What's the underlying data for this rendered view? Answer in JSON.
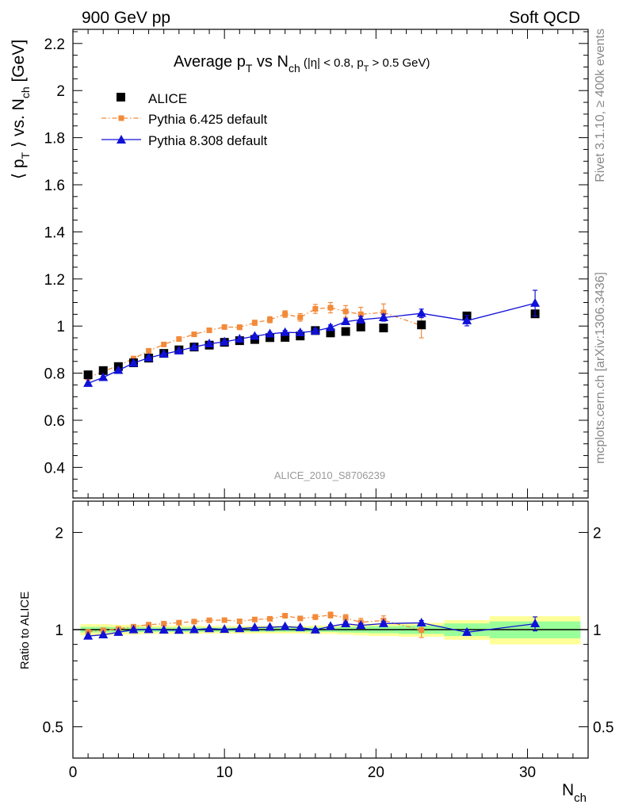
{
  "header": {
    "left": "900 GeV pp",
    "right": "Soft QCD"
  },
  "side_labels": {
    "top": "Rivet 3.1.10, ≥ 400k events",
    "bottom": "mcplots.cern.ch [arXiv:1306.3436]"
  },
  "watermark": "ALICE_2010_S8706239",
  "chart_data": [
    {
      "type": "scatter",
      "title": "Average p_T vs N_ch (|η| < 0.8, p_T > 0.5 GeV)",
      "ylabel": "⟨ p_T ⟩ vs. N_ch [GeV]",
      "xlabel": "N_ch",
      "xlim": [
        0,
        34
      ],
      "ylim": [
        0.27,
        2.26
      ],
      "yticks": [
        "0.4",
        "0.6",
        "0.8",
        "1",
        "1.2",
        "1.4",
        "1.6",
        "1.8",
        "2",
        "2.2"
      ],
      "legend_position": "top-left",
      "series": [
        {
          "name": "ALICE",
          "color": "#000000",
          "marker": "square",
          "points": [
            [
              1,
              0.793
            ],
            [
              2,
              0.811
            ],
            [
              3,
              0.828
            ],
            [
              4,
              0.844
            ],
            [
              5,
              0.864
            ],
            [
              6,
              0.884
            ],
            [
              7,
              0.899
            ],
            [
              8,
              0.911
            ],
            [
              9,
              0.919
            ],
            [
              10,
              0.931
            ],
            [
              11,
              0.938
            ],
            [
              12,
              0.943
            ],
            [
              13,
              0.951
            ],
            [
              14,
              0.952
            ],
            [
              15,
              0.958
            ],
            [
              16,
              0.981
            ],
            [
              17,
              0.971
            ],
            [
              18,
              0.977
            ],
            [
              19,
              0.996
            ],
            [
              20.5,
              0.992
            ],
            [
              23,
              1.005
            ],
            [
              26,
              1.043
            ],
            [
              30.5,
              1.052
            ]
          ]
        },
        {
          "name": "Pythia 6.425 default",
          "color": "#f28a3a",
          "marker": "small-square",
          "line": "dash-dot",
          "points": [
            [
              1,
              0.781,
              0.004
            ],
            [
              2,
              0.807,
              0.004
            ],
            [
              3,
              0.832,
              0.004
            ],
            [
              4,
              0.862,
              0.004
            ],
            [
              5,
              0.895,
              0.005
            ],
            [
              6,
              0.922,
              0.005
            ],
            [
              7,
              0.945,
              0.006
            ],
            [
              8,
              0.965,
              0.007
            ],
            [
              9,
              0.982,
              0.008
            ],
            [
              10,
              0.996,
              0.009
            ],
            [
              11,
              0.995,
              0.01
            ],
            [
              12,
              1.014,
              0.011
            ],
            [
              13,
              1.027,
              0.013
            ],
            [
              14,
              1.051,
              0.014
            ],
            [
              15,
              1.037,
              0.016
            ],
            [
              16,
              1.073,
              0.019
            ],
            [
              17,
              1.078,
              0.022
            ],
            [
              18,
              1.062,
              0.025
            ],
            [
              19,
              1.05,
              0.03
            ],
            [
              20.5,
              1.058,
              0.036
            ],
            [
              23,
              1.002,
              0.052
            ]
          ]
        },
        {
          "name": "Pythia 8.308 default",
          "color": "#1010d8",
          "marker": "triangle",
          "line": "solid",
          "points": [
            [
              1,
              0.757,
              0.004
            ],
            [
              2,
              0.782,
              0.004
            ],
            [
              3,
              0.812,
              0.004
            ],
            [
              4,
              0.843,
              0.004
            ],
            [
              5,
              0.865,
              0.004
            ],
            [
              6,
              0.881,
              0.004
            ],
            [
              7,
              0.895,
              0.004
            ],
            [
              8,
              0.911,
              0.005
            ],
            [
              9,
              0.925,
              0.005
            ],
            [
              10,
              0.933,
              0.005
            ],
            [
              11,
              0.945,
              0.006
            ],
            [
              12,
              0.957,
              0.006
            ],
            [
              13,
              0.967,
              0.007
            ],
            [
              14,
              0.973,
              0.008
            ],
            [
              15,
              0.972,
              0.009
            ],
            [
              16,
              0.979,
              0.01
            ],
            [
              17,
              0.994,
              0.011
            ],
            [
              18,
              1.019,
              0.012
            ],
            [
              19,
              1.027,
              0.014
            ],
            [
              20.5,
              1.036,
              0.015
            ],
            [
              23,
              1.054,
              0.018
            ],
            [
              26,
              1.023,
              0.022
            ],
            [
              30.5,
              1.097,
              0.055
            ]
          ]
        }
      ]
    },
    {
      "type": "scatter",
      "ylabel": "Ratio to ALICE",
      "xlabel": "N_ch",
      "xlim": [
        0,
        34
      ],
      "ylim": [
        0.4,
        2.5
      ],
      "log_y": true,
      "yticks": [
        "0.5",
        "1",
        "2"
      ],
      "xticks": [
        "0",
        "10",
        "20",
        "30"
      ],
      "reference_band": {
        "bins": [
          [
            0.5,
            1.5,
            0.04,
            0.02
          ],
          [
            1.5,
            2.5,
            0.04,
            0.02
          ],
          [
            2.5,
            3.5,
            0.035,
            0.018
          ],
          [
            3.5,
            4.5,
            0.035,
            0.018
          ],
          [
            4.5,
            5.5,
            0.03,
            0.016
          ],
          [
            5.5,
            6.5,
            0.03,
            0.016
          ],
          [
            6.5,
            7.5,
            0.03,
            0.016
          ],
          [
            7.5,
            8.5,
            0.03,
            0.016
          ],
          [
            8.5,
            9.5,
            0.028,
            0.015
          ],
          [
            9.5,
            10.5,
            0.028,
            0.015
          ],
          [
            10.5,
            11.5,
            0.028,
            0.015
          ],
          [
            11.5,
            12.5,
            0.028,
            0.015
          ],
          [
            12.5,
            13.5,
            0.028,
            0.015
          ],
          [
            13.5,
            14.5,
            0.028,
            0.015
          ],
          [
            14.5,
            15.5,
            0.028,
            0.015
          ],
          [
            15.5,
            16.5,
            0.03,
            0.016
          ],
          [
            16.5,
            17.5,
            0.03,
            0.016
          ],
          [
            17.5,
            18.5,
            0.035,
            0.02
          ],
          [
            18.5,
            19.5,
            0.04,
            0.022
          ],
          [
            19.5,
            21.5,
            0.045,
            0.025
          ],
          [
            21.5,
            24.5,
            0.05,
            0.03
          ],
          [
            24.5,
            27.5,
            0.07,
            0.045
          ],
          [
            27.5,
            33.5,
            0.1,
            0.06
          ]
        ],
        "outer_color": "#ffff99",
        "inner_color": "#99ff99"
      },
      "series": [
        {
          "name": "Pythia 6.425 default",
          "color": "#f28a3a",
          "marker": "small-square",
          "line": "dash-dot",
          "points": [
            [
              1,
              0.985,
              0.005
            ],
            [
              2,
              0.995,
              0.005
            ],
            [
              3,
              1.005,
              0.005
            ],
            [
              4,
              1.021,
              0.006
            ],
            [
              5,
              1.036,
              0.006
            ],
            [
              6,
              1.043,
              0.006
            ],
            [
              7,
              1.051,
              0.007
            ],
            [
              8,
              1.059,
              0.008
            ],
            [
              9,
              1.069,
              0.009
            ],
            [
              10,
              1.07,
              0.01
            ],
            [
              11,
              1.061,
              0.011
            ],
            [
              12,
              1.075,
              0.012
            ],
            [
              13,
              1.08,
              0.014
            ],
            [
              14,
              1.104,
              0.015
            ],
            [
              15,
              1.083,
              0.017
            ],
            [
              16,
              1.094,
              0.019
            ],
            [
              17,
              1.11,
              0.023
            ],
            [
              18,
              1.087,
              0.026
            ],
            [
              19,
              1.054,
              0.03
            ],
            [
              20.5,
              1.067,
              0.036
            ],
            [
              23,
              0.997,
              0.052
            ]
          ]
        },
        {
          "name": "Pythia 8.308 default",
          "color": "#1010d8",
          "marker": "triangle",
          "line": "solid",
          "points": [
            [
              1,
              0.955,
              0.005
            ],
            [
              2,
              0.964,
              0.005
            ],
            [
              3,
              0.981,
              0.005
            ],
            [
              4,
              0.999,
              0.005
            ],
            [
              5,
              1.001,
              0.005
            ],
            [
              6,
              0.997,
              0.005
            ],
            [
              7,
              0.996,
              0.005
            ],
            [
              8,
              1.0,
              0.005
            ],
            [
              9,
              1.007,
              0.005
            ],
            [
              10,
              1.002,
              0.005
            ],
            [
              11,
              1.007,
              0.006
            ],
            [
              12,
              1.015,
              0.006
            ],
            [
              13,
              1.017,
              0.007
            ],
            [
              14,
              1.022,
              0.008
            ],
            [
              15,
              1.015,
              0.009
            ],
            [
              16,
              0.998,
              0.01
            ],
            [
              17,
              1.024,
              0.011
            ],
            [
              18,
              1.043,
              0.012
            ],
            [
              19,
              1.031,
              0.014
            ],
            [
              20.5,
              1.044,
              0.015
            ],
            [
              23,
              1.049,
              0.018
            ],
            [
              26,
              0.981,
              0.021
            ],
            [
              30.5,
              1.043,
              0.052
            ]
          ]
        }
      ]
    }
  ]
}
